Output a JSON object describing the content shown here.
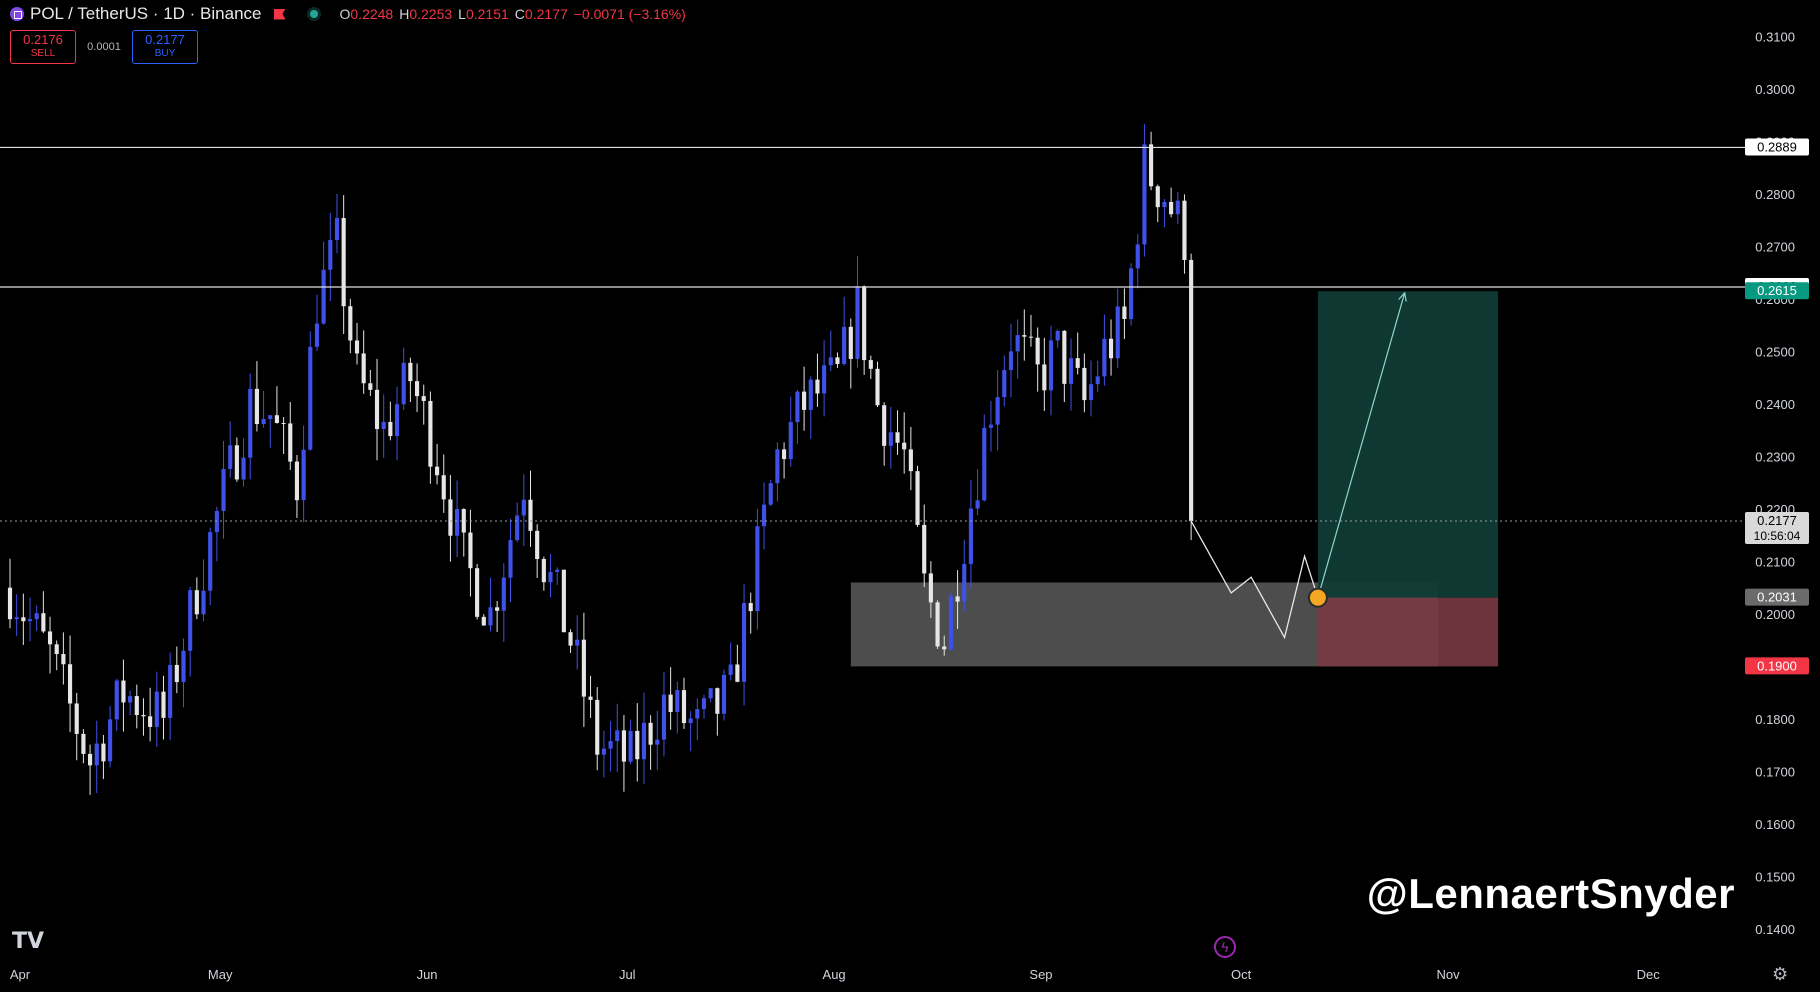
{
  "header": {
    "symbol": "POL / TetherUS · 1D · Binance",
    "ohlc": [
      {
        "k": "O",
        "v": "0.2248"
      },
      {
        "k": "H",
        "v": "0.2253"
      },
      {
        "k": "L",
        "v": "0.2151"
      },
      {
        "k": "C",
        "v": "0.2177"
      },
      {
        "k": "",
        "v": "−0.0071 (−3.16%)"
      }
    ]
  },
  "trade": {
    "sell_price": "0.2176",
    "sell_label": "SELL",
    "spread": "0.0001",
    "buy_price": "0.2177",
    "buy_label": "BUY"
  },
  "watermark": "@LennaertSnyder",
  "icons": {
    "logo": "pol-logo-icon",
    "flag": "flag-icon",
    "status": "status-dot-icon",
    "tv": "tradingview-logo-icon",
    "flash": "flash-icon",
    "gear": "gear-icon"
  },
  "colors": {
    "up": "#3f51e8",
    "down": "#e6e6e6",
    "target": "#0f3b34",
    "stop": "#7a3a45",
    "zone": "#5a5a5a",
    "price_tag_red": "#f23645",
    "price_tag_green": "#089981"
  },
  "chart_data": {
    "type": "candlestick",
    "x_ticks": [
      "Apr",
      "May",
      "Jun",
      "Jul",
      "Aug",
      "Sep",
      "Oct",
      "Nov",
      "Dec"
    ],
    "y_ticks": [
      0.31,
      0.3,
      0.29,
      0.28,
      0.27,
      0.26,
      0.25,
      0.24,
      0.23,
      0.22,
      0.21,
      0.2,
      0.19,
      0.18,
      0.17,
      0.16,
      0.15,
      0.14
    ],
    "ylim": [
      0.135,
      0.317
    ],
    "start_date": "2024-04-01",
    "end_date": "2024-12-17",
    "last_candle_date": "2024-09-25",
    "price_waypoints": [
      [
        "2024-04-01",
        0.205
      ],
      [
        "2024-04-07",
        0.192
      ],
      [
        "2024-04-13",
        0.172
      ],
      [
        "2024-04-18",
        0.185
      ],
      [
        "2024-04-24",
        0.18
      ],
      [
        "2024-04-29",
        0.205
      ],
      [
        "2024-05-03",
        0.223
      ],
      [
        "2024-05-07",
        0.24
      ],
      [
        "2024-05-10",
        0.238
      ],
      [
        "2024-05-14",
        0.225
      ],
      [
        "2024-05-17",
        0.26
      ],
      [
        "2024-05-20",
        0.27
      ],
      [
        "2024-05-23",
        0.245
      ],
      [
        "2024-05-27",
        0.235
      ],
      [
        "2024-05-31",
        0.245
      ],
      [
        "2024-06-04",
        0.23
      ],
      [
        "2024-06-08",
        0.21
      ],
      [
        "2024-06-12",
        0.2
      ],
      [
        "2024-06-17",
        0.225
      ],
      [
        "2024-06-20",
        0.21
      ],
      [
        "2024-06-24",
        0.195
      ],
      [
        "2024-06-28",
        0.175
      ],
      [
        "2024-07-03",
        0.172
      ],
      [
        "2024-07-08",
        0.183
      ],
      [
        "2024-07-13",
        0.178
      ],
      [
        "2024-07-18",
        0.185
      ],
      [
        "2024-07-21",
        0.205
      ],
      [
        "2024-07-25",
        0.23
      ],
      [
        "2024-07-29",
        0.24
      ],
      [
        "2024-08-03",
        0.245
      ],
      [
        "2024-08-06",
        0.258
      ],
      [
        "2024-08-09",
        0.24
      ],
      [
        "2024-08-13",
        0.23
      ],
      [
        "2024-08-16",
        0.205
      ],
      [
        "2024-08-19",
        0.195
      ],
      [
        "2024-08-22",
        0.215
      ],
      [
        "2024-08-26",
        0.24
      ],
      [
        "2024-08-29",
        0.253
      ],
      [
        "2024-09-02",
        0.245
      ],
      [
        "2024-09-05",
        0.25
      ],
      [
        "2024-09-09",
        0.24
      ],
      [
        "2024-09-12",
        0.25
      ],
      [
        "2024-09-15",
        0.255
      ],
      [
        "2024-09-18",
        0.285
      ],
      [
        "2024-09-21",
        0.28
      ],
      [
        "2024-09-24",
        0.272
      ],
      [
        "2024-09-27",
        0.275
      ],
      [
        "2024-09-30",
        0.268
      ],
      [
        "2024-10-03",
        0.258
      ],
      [
        "2024-10-06",
        0.252
      ],
      [
        "2024-10-09",
        0.245
      ],
      [
        "2024-10-12",
        0.225
      ],
      [
        "2024-10-15",
        0.218
      ]
    ],
    "current_price": 0.2177,
    "countdown": "10:56:04",
    "horizontal_levels": [
      {
        "value": 0.2889,
        "label": "0.2889"
      },
      {
        "value": 0.2623,
        "label": "0.2623"
      }
    ],
    "demand_zone": {
      "from_date": "2024-08-05",
      "to_date": "2024-11-01",
      "top": 0.206,
      "bottom": 0.19
    },
    "position": {
      "from_date": "2024-10-14",
      "to_date": "2024-11-10",
      "entry": 0.2031,
      "target": 0.2615,
      "stop": 0.19,
      "entry_label": "0.2031",
      "target_label": "0.2615",
      "stop_label": "0.1900"
    },
    "projection_path": [
      [
        "2024-09-25",
        0.2177
      ],
      [
        "2024-10-01",
        0.204
      ],
      [
        "2024-10-04",
        0.207
      ],
      [
        "2024-10-09",
        0.1955
      ],
      [
        "2024-10-12",
        0.211
      ],
      [
        "2024-10-14",
        0.2031
      ]
    ],
    "arrow_tip": [
      "2024-10-27",
      0.2612
    ]
  }
}
